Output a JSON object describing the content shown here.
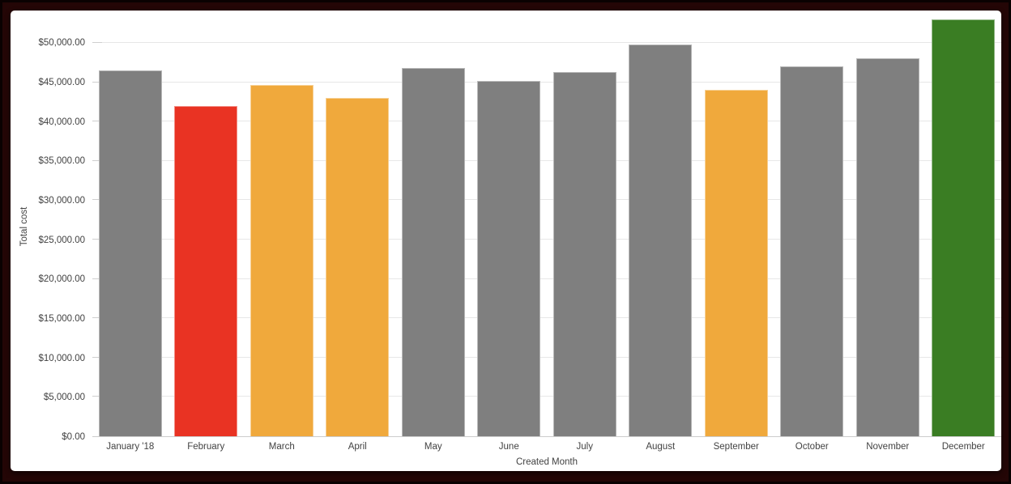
{
  "frame": {
    "border_color": "#240606",
    "canvas_background": "#ffffff"
  },
  "chart_data": {
    "type": "bar",
    "title": "",
    "xlabel": "Created Month",
    "ylabel": "Total cost",
    "categories": [
      "January '18",
      "February",
      "March",
      "April",
      "May",
      "June",
      "July",
      "August",
      "September",
      "October",
      "November",
      "December"
    ],
    "values": [
      46500,
      42000,
      44650,
      43000,
      46800,
      45200,
      46350,
      49800,
      44000,
      47000,
      48000,
      53000
    ],
    "bar_colors": [
      "#7f7f7f",
      "#e93323",
      "#f0a93c",
      "#f0a93c",
      "#7f7f7f",
      "#7f7f7f",
      "#7f7f7f",
      "#7f7f7f",
      "#f0a93c",
      "#7f7f7f",
      "#7f7f7f",
      "#3a7d23"
    ],
    "color_legend": {
      "gray": "#7f7f7f",
      "red": "#e93323",
      "orange": "#f0a93c",
      "green": "#3a7d23"
    },
    "ylim": [
      0,
      53400
    ],
    "yticks": [
      {
        "value": 0,
        "label": "$0.00"
      },
      {
        "value": 5000,
        "label": "$5,000.00"
      },
      {
        "value": 10000,
        "label": "$10,000.00"
      },
      {
        "value": 15000,
        "label": "$15,000.00"
      },
      {
        "value": 20000,
        "label": "$20,000.00"
      },
      {
        "value": 25000,
        "label": "$25,000.00"
      },
      {
        "value": 30000,
        "label": "$30,000.00"
      },
      {
        "value": 35000,
        "label": "$35,000.00"
      },
      {
        "value": 40000,
        "label": "$40,000.00"
      },
      {
        "value": 45000,
        "label": "$45,000.00"
      },
      {
        "value": 50000,
        "label": "$50,000.00"
      }
    ],
    "grid": true,
    "legend": "none",
    "axis_colors": {
      "gridline": "#e7e7e7",
      "baseline": "#cccccc",
      "tick": "#cfcfcf",
      "text": "#424242"
    }
  }
}
